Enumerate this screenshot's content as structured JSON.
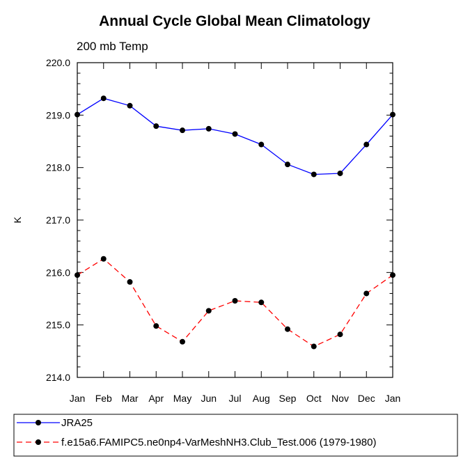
{
  "chart_data": {
    "type": "line",
    "title": "Annual Cycle Global Mean Climatology",
    "subtitle": "200 mb Temp",
    "xlabel": "",
    "ylabel": "K",
    "categories": [
      "Jan",
      "Feb",
      "Mar",
      "Apr",
      "May",
      "Jun",
      "Jul",
      "Aug",
      "Sep",
      "Oct",
      "Nov",
      "Dec",
      "Jan"
    ],
    "ylim": [
      214.0,
      220.0
    ],
    "yticks": [
      "214.0",
      "215.0",
      "216.0",
      "217.0",
      "218.0",
      "219.0",
      "220.0"
    ],
    "grid": false,
    "legend_position": "bottom",
    "series": [
      {
        "name": "JRA25",
        "color": "#0000ff",
        "dash": "solid",
        "marker": "circle",
        "values": [
          219.01,
          219.32,
          219.18,
          218.79,
          218.71,
          218.74,
          218.64,
          218.44,
          218.06,
          217.87,
          217.89,
          218.44,
          219.01
        ]
      },
      {
        "name": "f.e15a6.FAMIPC5.ne0np4-VarMeshNH3.Club_Test.006 (1979-1980)",
        "color": "#ff0000",
        "dash": "dashed",
        "marker": "circle",
        "values": [
          215.95,
          216.26,
          215.82,
          214.98,
          214.68,
          215.27,
          215.46,
          215.43,
          214.92,
          214.59,
          214.82,
          215.6,
          215.95
        ]
      }
    ]
  }
}
